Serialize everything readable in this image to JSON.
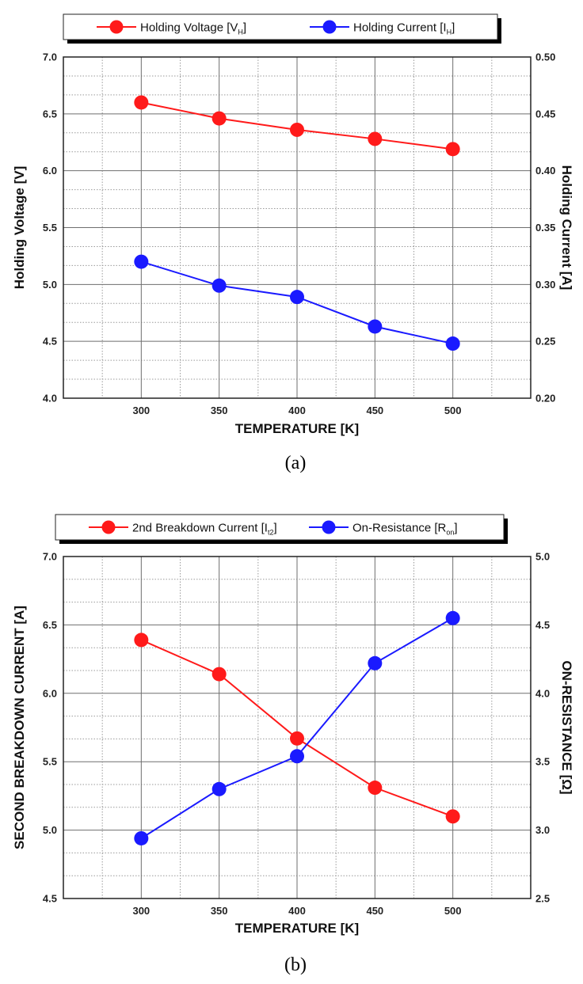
{
  "chart_data": [
    {
      "type": "line",
      "caption": "(a)",
      "xlabel": "TEMPERATURE [K]",
      "ylabel_left": "Holding Voltage [V]",
      "ylabel_right": "Holding Current [A]",
      "x": [
        300,
        350,
        400,
        450,
        500
      ],
      "xlim": [
        250,
        550
      ],
      "ylim_left": [
        4.0,
        7.0
      ],
      "ylim_right": [
        0.2,
        0.5
      ],
      "yticks_left": [
        "4.0",
        "4.5",
        "5.0",
        "5.5",
        "6.0",
        "6.5",
        "7.0"
      ],
      "yticks_right": [
        "0.20",
        "0.25",
        "0.30",
        "0.35",
        "0.40",
        "0.45",
        "0.50"
      ],
      "xticks": [
        "300",
        "350",
        "400",
        "450",
        "500"
      ],
      "grid": true,
      "legend_position": "top",
      "series": [
        {
          "name": "Holding Voltage [VH]",
          "legend_main": "Holding Voltage [V",
          "legend_sub": "H",
          "legend_end": "]",
          "axis": "left",
          "color": "#ff1a1a",
          "values": [
            6.6,
            6.46,
            6.36,
            6.28,
            6.19
          ]
        },
        {
          "name": "Holding Current [IH]",
          "legend_main": "Holding Current [I",
          "legend_sub": "H",
          "legend_end": "]",
          "axis": "right",
          "color": "#1a1aff",
          "values": [
            0.32,
            0.299,
            0.289,
            0.263,
            0.248
          ]
        }
      ]
    },
    {
      "type": "line",
      "caption": "(b)",
      "xlabel": "TEMPERATURE [K]",
      "ylabel_left": "SECOND BREAKDOWN CURRENT [A]",
      "ylabel_right": "ON-RESISTANCE [Ω]",
      "x": [
        300,
        350,
        400,
        450,
        500
      ],
      "xlim": [
        250,
        550
      ],
      "ylim_left": [
        4.5,
        7.0
      ],
      "ylim_right": [
        2.5,
        5.0
      ],
      "yticks_left": [
        "4.5",
        "5.0",
        "5.5",
        "6.0",
        "6.5",
        "7.0"
      ],
      "yticks_right": [
        "2.5",
        "3.0",
        "3.5",
        "4.0",
        "4.5",
        "5.0"
      ],
      "xticks": [
        "300",
        "350",
        "400",
        "450",
        "500"
      ],
      "grid": true,
      "legend_position": "top",
      "series": [
        {
          "name": "2nd Breakdown Current [It2]",
          "legend_main": "2nd Breakdown Current [I",
          "legend_sub": "t2",
          "legend_end": "]",
          "axis": "left",
          "color": "#ff1a1a",
          "values": [
            6.39,
            6.14,
            5.67,
            5.31,
            5.1
          ]
        },
        {
          "name": "On-Resistance [Ron]",
          "legend_main": "On-Resistance [R",
          "legend_sub": "on",
          "legend_end": "]",
          "axis": "right",
          "color": "#1a1aff",
          "values": [
            2.94,
            3.3,
            3.54,
            4.22,
            4.55
          ]
        }
      ]
    }
  ]
}
